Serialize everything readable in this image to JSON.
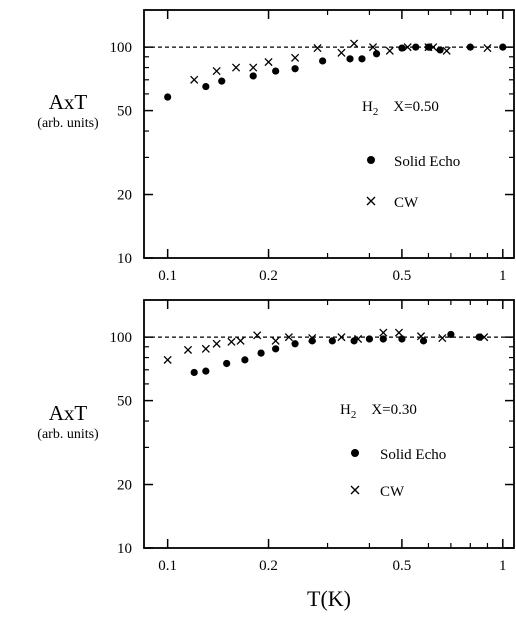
{
  "chart_data": [
    {
      "type": "scatter",
      "panel": "top",
      "ylabel": "AxT",
      "ylabel_sub": "(arb. units)",
      "xlabel": "",
      "x_scale": "log",
      "y_scale": "log",
      "xlim": [
        0.085,
        1.08
      ],
      "ylim": [
        10,
        150
      ],
      "x_ticks": [
        "0.1",
        "0.2",
        "0.5",
        "1"
      ],
      "y_ticks": [
        "10",
        "20",
        "50",
        "100"
      ],
      "reference_line": {
        "y": 100,
        "style": "dashed"
      },
      "annotations": {
        "species": "H",
        "subscript": "2",
        "concentration": "X=0.50"
      },
      "series": [
        {
          "name": "Solid Echo",
          "marker": "filled-circle",
          "points": [
            [
              0.1,
              58
            ],
            [
              0.13,
              65
            ],
            [
              0.145,
              69
            ],
            [
              0.18,
              73
            ],
            [
              0.21,
              77
            ],
            [
              0.24,
              79
            ],
            [
              0.29,
              86
            ],
            [
              0.35,
              88
            ],
            [
              0.38,
              88
            ],
            [
              0.42,
              93
            ],
            [
              0.5,
              99
            ],
            [
              0.55,
              100
            ],
            [
              0.6,
              100
            ],
            [
              0.65,
              97
            ],
            [
              0.8,
              100
            ],
            [
              1.0,
              100
            ]
          ]
        },
        {
          "name": "CW",
          "marker": "cross",
          "points": [
            [
              0.12,
              70
            ],
            [
              0.14,
              77
            ],
            [
              0.16,
              80
            ],
            [
              0.18,
              80
            ],
            [
              0.2,
              85
            ],
            [
              0.24,
              89
            ],
            [
              0.28,
              99
            ],
            [
              0.33,
              94
            ],
            [
              0.36,
              104
            ],
            [
              0.41,
              100
            ],
            [
              0.46,
              96
            ],
            [
              0.52,
              100
            ],
            [
              0.6,
              100
            ],
            [
              0.62,
              100
            ],
            [
              0.68,
              96
            ],
            [
              0.9,
              99
            ]
          ]
        }
      ]
    },
    {
      "type": "scatter",
      "panel": "bottom",
      "ylabel": "AxT",
      "ylabel_sub": "(arb. units)",
      "xlabel": "T(K)",
      "x_scale": "log",
      "y_scale": "log",
      "xlim": [
        0.085,
        1.08
      ],
      "ylim": [
        10,
        150
      ],
      "x_ticks": [
        "0.1",
        "0.2",
        "0.5",
        "1"
      ],
      "y_ticks": [
        "10",
        "20",
        "50",
        "100"
      ],
      "reference_line": {
        "y": 100,
        "style": "dashed"
      },
      "annotations": {
        "species": "H",
        "subscript": "2",
        "concentration": "X=0.30"
      },
      "series": [
        {
          "name": "Solid Echo",
          "marker": "filled-circle",
          "points": [
            [
              0.12,
              68
            ],
            [
              0.13,
              69
            ],
            [
              0.15,
              75
            ],
            [
              0.17,
              78
            ],
            [
              0.19,
              84
            ],
            [
              0.21,
              88
            ],
            [
              0.24,
              93
            ],
            [
              0.27,
              96
            ],
            [
              0.31,
              96
            ],
            [
              0.36,
              96
            ],
            [
              0.4,
              98
            ],
            [
              0.44,
              98
            ],
            [
              0.5,
              98
            ],
            [
              0.58,
              96
            ],
            [
              0.7,
              103
            ],
            [
              0.85,
              100
            ]
          ]
        },
        {
          "name": "CW",
          "marker": "cross",
          "points": [
            [
              0.1,
              78
            ],
            [
              0.115,
              87
            ],
            [
              0.13,
              88
            ],
            [
              0.14,
              93
            ],
            [
              0.155,
              95
            ],
            [
              0.165,
              96
            ],
            [
              0.185,
              102
            ],
            [
              0.21,
              96
            ],
            [
              0.23,
              100
            ],
            [
              0.27,
              99
            ],
            [
              0.33,
              100
            ],
            [
              0.37,
              98
            ],
            [
              0.44,
              105
            ],
            [
              0.49,
              105
            ],
            [
              0.57,
              101
            ],
            [
              0.66,
              99
            ],
            [
              0.88,
              100
            ]
          ]
        }
      ]
    }
  ]
}
